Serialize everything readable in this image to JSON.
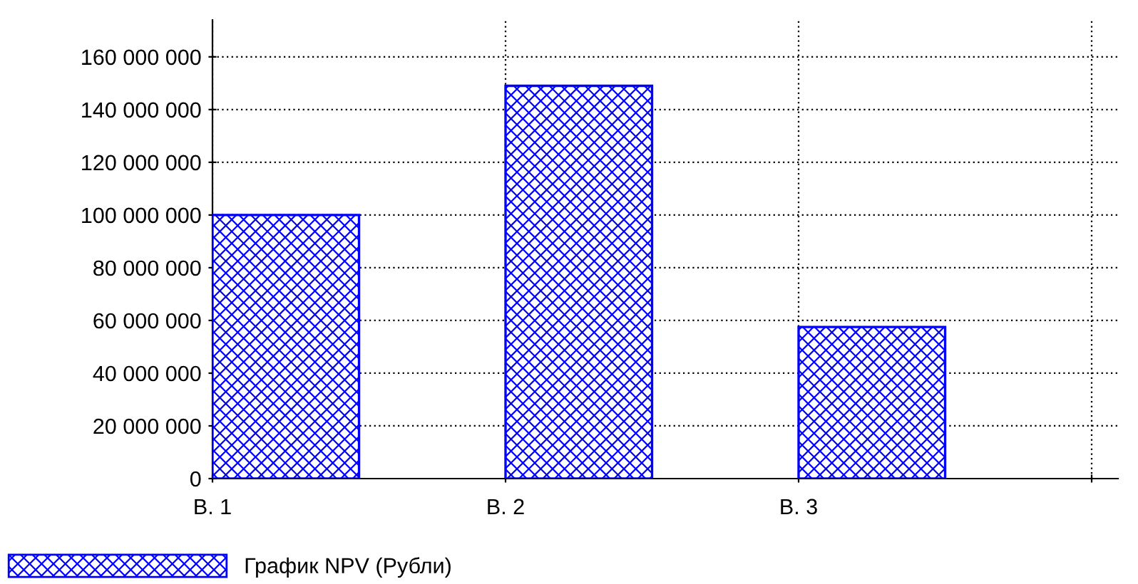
{
  "chart_data": {
    "type": "bar",
    "categories": [
      "В. 1",
      "В. 2",
      "В. 3"
    ],
    "series": [
      {
        "name": "График NPV (Рубли)",
        "color": "#0000ff",
        "values": [
          100000000,
          149000000,
          57500000
        ]
      }
    ],
    "ylim": [
      0,
      174000000
    ],
    "yticks": [
      {
        "value": 0,
        "label": "0"
      },
      {
        "value": 20000000,
        "label": "20 000 000"
      },
      {
        "value": 40000000,
        "label": "40 000 000"
      },
      {
        "value": 60000000,
        "label": "60 000 000"
      },
      {
        "value": 80000000,
        "label": "80 000 000"
      },
      {
        "value": 100000000,
        "label": "100 000 000"
      },
      {
        "value": 120000000,
        "label": "120 000 000"
      },
      {
        "value": 140000000,
        "label": "140 000 000"
      },
      {
        "value": 160000000,
        "label": "160 000 000"
      }
    ],
    "grid": true,
    "legend": "bottom left"
  }
}
